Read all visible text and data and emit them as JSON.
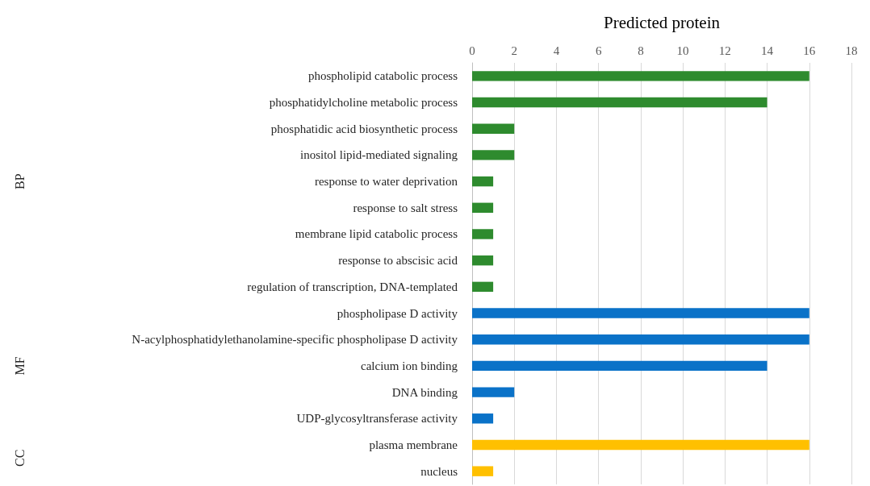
{
  "chart_data": {
    "type": "bar",
    "orientation": "horizontal",
    "xlabel": "Predicted protein",
    "categories": [
      "phospholipid catabolic process",
      "phosphatidylcholine metabolic process",
      "phosphatidic acid biosynthetic process",
      "inositol lipid-mediated signaling",
      "response to water deprivation",
      "response to salt stress",
      "membrane lipid catabolic process",
      "response to abscisic acid",
      "regulation of transcription, DNA-templated",
      "phospholipase D activity",
      "N-acylphosphatidylethanolamine-specific phospholipase D activity",
      "calcium ion binding",
      "DNA binding",
      "UDP-glycosyltransferase activity",
      "plasma membrane",
      "nucleus"
    ],
    "series": [
      {
        "color": "#2e8b2e",
        "values": [
          16,
          14,
          2,
          2,
          1,
          1,
          1,
          1,
          1,
          null,
          null,
          null,
          null,
          null,
          null,
          null
        ]
      },
      {
        "color": "#0a72c8",
        "values": [
          null,
          null,
          null,
          null,
          null,
          null,
          null,
          null,
          null,
          16,
          16,
          14,
          2,
          1,
          null,
          null
        ]
      },
      {
        "color": "#ffc000",
        "values": [
          null,
          null,
          null,
          null,
          null,
          null,
          null,
          null,
          null,
          null,
          null,
          null,
          null,
          null,
          16,
          1
        ]
      }
    ],
    "xlim": [
      0,
      18
    ],
    "xticks": [
      0,
      2,
      4,
      6,
      8,
      10,
      12,
      14,
      16,
      18
    ],
    "grid": "x",
    "annotations": [
      "BP",
      "MF",
      "CC"
    ]
  }
}
